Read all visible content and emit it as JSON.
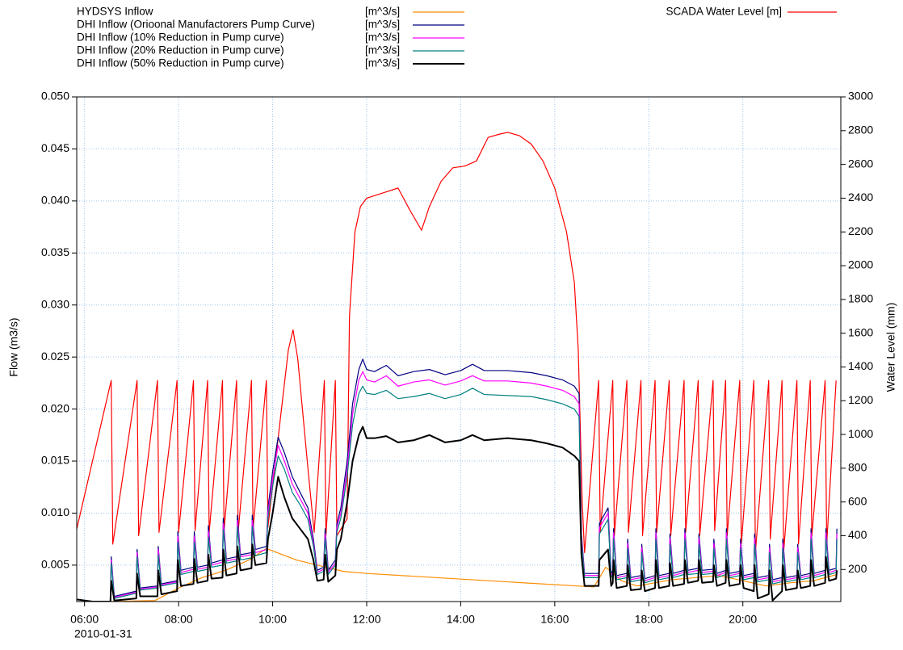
{
  "chart_data": {
    "type": "line",
    "y_label": "Flow (m3/s)",
    "y2_label": "Water Level (mm)",
    "x_date_label": "2010-01-31",
    "grid": true,
    "xlim": [
      "05:50",
      "22:05"
    ],
    "xticks": [
      "06:00",
      "08:00",
      "10:00",
      "12:00",
      "14:00",
      "16:00",
      "18:00",
      "20:00"
    ],
    "ylim": [
      0.0015,
      0.05
    ],
    "yticks": [
      0.005,
      {
        "value": 0.01,
        "label": "0.010"
      },
      0.015,
      {
        "value": 0.02,
        "label": "0.020"
      },
      0.025,
      {
        "value": 0.03,
        "label": "0.030"
      },
      0.035,
      {
        "value": 0.04,
        "label": "0.040"
      },
      0.045,
      {
        "value": 0.05,
        "label": "0.050"
      }
    ],
    "y2lim": [
      10,
      3000
    ],
    "y2ticks": [
      200,
      400,
      600,
      800,
      1000,
      1200,
      1400,
      1600,
      1800,
      2000,
      2200,
      2400,
      2600,
      2800,
      3000
    ],
    "x": [
      "05:50",
      "06:10",
      "06:33",
      "06:34",
      "06:38",
      "07:06",
      "07:07",
      "07:11",
      "07:33",
      "07:34",
      "07:38",
      "07:58",
      "07:59",
      "08:03",
      "08:19",
      "08:20",
      "08:24",
      "08:37",
      "08:38",
      "08:42",
      "08:56",
      "08:57",
      "09:01",
      "09:14",
      "09:15",
      "09:19",
      "09:33",
      "09:34",
      "09:38",
      "09:52",
      "09:54",
      "10:00",
      "10:07",
      "10:15",
      "10:25",
      "10:35",
      "10:45",
      "10:52",
      "10:57",
      "11:05",
      "11:07",
      "11:11",
      "11:20",
      "11:22",
      "11:27",
      "11:35",
      "11:42",
      "11:50",
      "11:55",
      "12:00",
      "12:10",
      "12:25",
      "12:40",
      "13:00",
      "13:20",
      "13:40",
      "14:00",
      "14:15",
      "14:30",
      "15:00",
      "15:30",
      "15:50",
      "16:10",
      "16:25",
      "16:31",
      "16:34",
      "16:38",
      "16:56",
      "16:57",
      "17:08",
      "17:12",
      "17:14",
      "17:15",
      "17:19",
      "17:32",
      "17:33",
      "17:37",
      "17:50",
      "17:51",
      "17:55",
      "18:08",
      "18:09",
      "18:13",
      "18:26",
      "18:27",
      "18:31",
      "18:45",
      "18:46",
      "18:50",
      "19:03",
      "19:04",
      "19:08",
      "19:22",
      "19:23",
      "19:27",
      "19:38",
      "19:39",
      "19:43",
      "19:56",
      "19:57",
      "20:01",
      "20:14",
      "20:15",
      "20:19",
      "20:33",
      "20:34",
      "20:38",
      "20:50",
      "20:51",
      "20:55",
      "21:09",
      "21:10",
      "21:14",
      "21:26",
      "21:27",
      "21:31",
      "21:45",
      "21:46",
      "21:50",
      "21:59",
      "22:00"
    ],
    "series": [
      {
        "name": "HYDSYS Inflow",
        "unit": "[m^3/s]",
        "color": "#ff8c00",
        "x": [
          "06:30",
          "07:30",
          "08:00",
          "08:30",
          "09:00",
          "09:30",
          "09:52",
          "10:30",
          "11:30",
          "12:00",
          "16:50",
          "17:05",
          "17:25",
          "17:45",
          "18:30",
          "19:30",
          "20:30",
          "21:00",
          "21:30",
          "22:00"
        ],
        "values": [
          0.0015,
          0.0016,
          0.0028,
          0.0038,
          0.0045,
          0.0055,
          0.0066,
          0.0055,
          0.0044,
          0.0042,
          0.0029,
          0.0048,
          0.0035,
          0.003,
          0.0036,
          0.004,
          0.003,
          0.0033,
          0.0035,
          0.0041
        ]
      },
      {
        "name": "DHI Inflow (Orioonal Manufactorers Pump Curve)",
        "unit": "[m^3/s]",
        "color": "#000080",
        "values": [
          null,
          null,
          0.0015,
          0.0058,
          0.002,
          0.0025,
          0.0065,
          0.0028,
          0.003,
          0.0068,
          0.0032,
          0.0035,
          0.0082,
          0.0045,
          0.0048,
          0.0082,
          0.0048,
          0.005,
          0.0088,
          0.0052,
          0.0055,
          0.0095,
          0.0056,
          0.0058,
          0.0098,
          0.006,
          0.0062,
          0.0098,
          0.0065,
          0.0068,
          0.0105,
          0.014,
          0.0173,
          0.0158,
          0.0135,
          0.012,
          0.0105,
          0.0075,
          0.0045,
          0.0048,
          0.0085,
          0.0045,
          0.0055,
          0.009,
          0.0105,
          0.015,
          0.0205,
          0.0238,
          0.0248,
          0.0238,
          0.0236,
          0.0242,
          0.0232,
          0.0236,
          0.0238,
          0.0233,
          0.0237,
          0.0243,
          0.0237,
          0.0237,
          0.0235,
          0.0232,
          0.0228,
          0.0222,
          0.0215,
          0.008,
          0.0042,
          0.0042,
          0.009,
          0.0105,
          0.0042,
          0.0045,
          0.0085,
          0.004,
          0.0042,
          0.0075,
          0.0038,
          0.004,
          0.007,
          0.0037,
          0.004,
          0.0085,
          0.004,
          0.0042,
          0.008,
          0.0042,
          0.0045,
          0.0085,
          0.0045,
          0.0047,
          0.008,
          0.0045,
          0.0046,
          0.0075,
          0.0042,
          0.0045,
          0.0085,
          0.0042,
          0.0044,
          0.0075,
          0.004,
          0.0042,
          0.008,
          0.0038,
          0.004,
          0.007,
          0.0036,
          0.0038,
          0.0075,
          0.0038,
          0.004,
          0.007,
          0.004,
          0.0042,
          0.0085,
          0.0042,
          0.0045,
          0.0085,
          0.0045,
          0.0047,
          0.0085
        ]
      },
      {
        "name": "DHI Inflow (10% Reduction in Pump curve)",
        "unit": "[m^3/s]",
        "color": "#ff00ff",
        "values": [
          null,
          null,
          0.0015,
          0.0055,
          0.0019,
          0.0024,
          0.0062,
          0.0027,
          0.0029,
          0.0065,
          0.0031,
          0.0034,
          0.0078,
          0.0043,
          0.0046,
          0.0078,
          0.0046,
          0.0048,
          0.0083,
          0.005,
          0.0053,
          0.009,
          0.0054,
          0.0056,
          0.0093,
          0.0058,
          0.006,
          0.0093,
          0.0062,
          0.0065,
          0.01,
          0.0133,
          0.0165,
          0.015,
          0.0128,
          0.0114,
          0.01,
          0.0071,
          0.0043,
          0.0046,
          0.008,
          0.0043,
          0.0052,
          0.0086,
          0.01,
          0.0142,
          0.0195,
          0.0228,
          0.0236,
          0.0228,
          0.0226,
          0.0232,
          0.0222,
          0.0226,
          0.0228,
          0.0223,
          0.0227,
          0.0232,
          0.0227,
          0.0227,
          0.0225,
          0.0222,
          0.0218,
          0.0212,
          0.0205,
          0.0077,
          0.004,
          0.004,
          0.0086,
          0.01,
          0.004,
          0.0043,
          0.0081,
          0.0038,
          0.004,
          0.0071,
          0.0036,
          0.0038,
          0.0067,
          0.0035,
          0.0038,
          0.0081,
          0.0038,
          0.004,
          0.0076,
          0.004,
          0.0043,
          0.0081,
          0.0043,
          0.0045,
          0.0076,
          0.0043,
          0.0044,
          0.0071,
          0.004,
          0.0043,
          0.0081,
          0.004,
          0.0042,
          0.0071,
          0.0038,
          0.004,
          0.0076,
          0.0036,
          0.0038,
          0.0067,
          0.0034,
          0.0036,
          0.0071,
          0.0036,
          0.0038,
          0.0067,
          0.0038,
          0.004,
          0.0081,
          0.004,
          0.0043,
          0.0081,
          0.0043,
          0.0045,
          0.008
        ]
      },
      {
        "name": "DHI Inflow (20% Reduction in Pump curve)",
        "unit": "[m^3/s]",
        "color": "#008080",
        "values": [
          null,
          null,
          0.0015,
          0.0052,
          0.0018,
          0.0023,
          0.0058,
          0.0026,
          0.0028,
          0.006,
          0.003,
          0.0033,
          0.0072,
          0.0041,
          0.0044,
          0.0072,
          0.0044,
          0.0046,
          0.0077,
          0.0048,
          0.005,
          0.0084,
          0.0052,
          0.0054,
          0.0087,
          0.0055,
          0.0057,
          0.0087,
          0.0059,
          0.0062,
          0.0095,
          0.0126,
          0.0155,
          0.0142,
          0.012,
          0.0108,
          0.0094,
          0.0068,
          0.0041,
          0.0044,
          0.0075,
          0.0041,
          0.005,
          0.0082,
          0.0095,
          0.0135,
          0.0185,
          0.0215,
          0.0222,
          0.0215,
          0.0214,
          0.0218,
          0.021,
          0.0212,
          0.0215,
          0.021,
          0.0214,
          0.022,
          0.0214,
          0.0213,
          0.0212,
          0.0209,
          0.0205,
          0.02,
          0.0193,
          0.0073,
          0.0038,
          0.0038,
          0.008,
          0.0094,
          0.0038,
          0.0041,
          0.0075,
          0.0036,
          0.0038,
          0.0066,
          0.0034,
          0.0036,
          0.0062,
          0.0033,
          0.0036,
          0.0075,
          0.0036,
          0.0038,
          0.007,
          0.0038,
          0.0041,
          0.0075,
          0.0041,
          0.0042,
          0.007,
          0.0041,
          0.0042,
          0.0066,
          0.0038,
          0.0041,
          0.0075,
          0.0038,
          0.004,
          0.0066,
          0.0036,
          0.0038,
          0.007,
          0.0034,
          0.0036,
          0.0062,
          0.0032,
          0.0034,
          0.0066,
          0.0034,
          0.0036,
          0.0062,
          0.0036,
          0.0038,
          0.0075,
          0.0038,
          0.0041,
          0.0075,
          0.0041,
          0.0043,
          0.0075
        ]
      },
      {
        "name": "DHI Inflow (50% Reduction in Pump curve)",
        "unit": "[m^3/s]",
        "color": "#000000",
        "values": [
          0.0017,
          0.0015,
          0.0015,
          0.0035,
          0.0016,
          0.0018,
          0.0042,
          0.002,
          0.002,
          0.0045,
          0.0022,
          0.0025,
          0.0055,
          0.003,
          0.0032,
          0.0056,
          0.0033,
          0.0035,
          0.006,
          0.0037,
          0.0038,
          0.0065,
          0.004,
          0.0042,
          0.0068,
          0.0045,
          0.0047,
          0.007,
          0.005,
          0.0052,
          0.0075,
          0.01,
          0.0135,
          0.0115,
          0.0095,
          0.0085,
          0.0075,
          0.0055,
          0.0035,
          0.0036,
          0.006,
          0.0034,
          0.004,
          0.0065,
          0.0075,
          0.011,
          0.015,
          0.0175,
          0.0183,
          0.0172,
          0.0172,
          0.0174,
          0.0168,
          0.017,
          0.0175,
          0.0168,
          0.017,
          0.0175,
          0.017,
          0.0172,
          0.017,
          0.0167,
          0.0163,
          0.0155,
          0.015,
          0.006,
          0.003,
          0.003,
          0.0055,
          0.0065,
          0.003,
          0.0033,
          0.0055,
          0.0028,
          0.003,
          0.005,
          0.0026,
          0.0027,
          0.0045,
          0.0025,
          0.0028,
          0.0055,
          0.0028,
          0.003,
          0.0052,
          0.003,
          0.0032,
          0.0055,
          0.0033,
          0.0035,
          0.0055,
          0.0033,
          0.0034,
          0.005,
          0.003,
          0.0033,
          0.0055,
          0.003,
          0.0032,
          0.005,
          0.0028,
          0.0025,
          0.005,
          0.0018,
          0.0022,
          0.0045,
          0.0016,
          0.0025,
          0.005,
          0.0026,
          0.0028,
          0.0045,
          0.0028,
          0.003,
          0.0055,
          0.003,
          0.0033,
          0.0058,
          0.0035,
          0.0037,
          0.0045
        ]
      },
      {
        "name": "SCADA Water Level [m]",
        "color": "#ff0000",
        "axis": "y2",
        "x": [
          "05:50",
          "06:34",
          "06:36",
          "07:07",
          "07:09",
          "07:33",
          "07:35",
          "07:58",
          "08:00",
          "08:19",
          "08:21",
          "08:37",
          "08:39",
          "08:56",
          "08:58",
          "09:14",
          "09:16",
          "09:33",
          "09:35",
          "09:52",
          "09:54",
          "10:10",
          "10:20",
          "10:26",
          "10:32",
          "10:45",
          "10:53",
          "11:06",
          "11:08",
          "11:20",
          "11:22",
          "11:35",
          "11:38",
          "11:45",
          "11:52",
          "12:00",
          "12:20",
          "12:40",
          "12:55",
          "13:10",
          "13:20",
          "13:35",
          "13:50",
          "14:05",
          "14:20",
          "14:35",
          "14:50",
          "15:00",
          "15:15",
          "15:30",
          "15:45",
          "16:00",
          "16:15",
          "16:25",
          "16:30",
          "16:35",
          "16:38",
          "16:56",
          "16:58",
          "17:14",
          "17:16",
          "17:32",
          "17:34",
          "17:50",
          "17:52",
          "18:08",
          "18:10",
          "18:26",
          "18:28",
          "18:45",
          "18:47",
          "19:03",
          "19:05",
          "19:22",
          "19:24",
          "19:38",
          "19:40",
          "19:56",
          "19:58",
          "20:14",
          "20:16",
          "20:33",
          "20:35",
          "20:50",
          "20:52",
          "21:09",
          "21:11",
          "21:26",
          "21:28",
          "21:45",
          "21:47",
          "21:59"
        ],
        "values": [
          440,
          1320,
          350,
          1320,
          400,
          1320,
          420,
          1320,
          420,
          1320,
          430,
          1320,
          420,
          1320,
          430,
          1320,
          420,
          1320,
          440,
          1320,
          450,
          1100,
          1500,
          1620,
          1450,
          800,
          420,
          1320,
          400,
          1320,
          400,
          500,
          1700,
          2200,
          2350,
          2400,
          2430,
          2460,
          2330,
          2210,
          2350,
          2500,
          2580,
          2590,
          2620,
          2760,
          2780,
          2790,
          2770,
          2720,
          2620,
          2460,
          2200,
          1900,
          1500,
          600,
          300,
          1320,
          420,
          1320,
          400,
          1320,
          420,
          1320,
          400,
          1320,
          420,
          1320,
          400,
          1320,
          420,
          1320,
          400,
          1320,
          430,
          1320,
          400,
          1320,
          350,
          1320,
          300,
          1320,
          380,
          1320,
          300,
          1320,
          350,
          1320,
          400,
          1320,
          350,
          1320
        ]
      }
    ]
  }
}
